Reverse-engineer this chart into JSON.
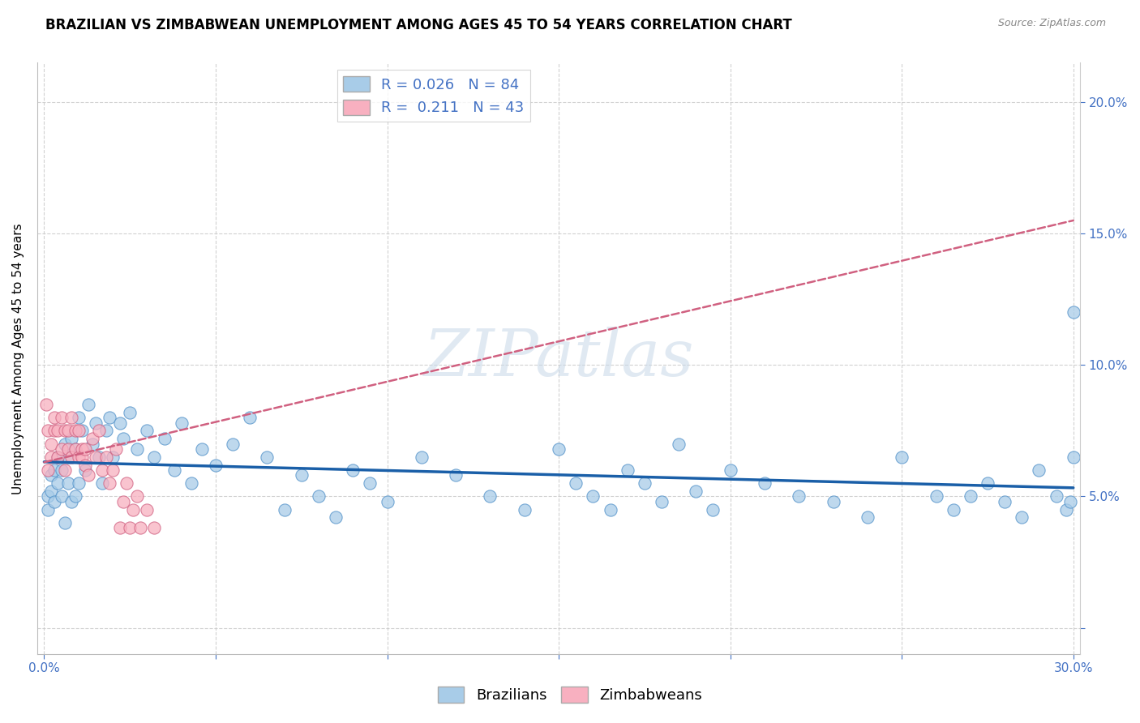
{
  "title": "BRAZILIAN VS ZIMBABWEAN UNEMPLOYMENT AMONG AGES 45 TO 54 YEARS CORRELATION CHART",
  "source": "Source: ZipAtlas.com",
  "ylabel": "Unemployment Among Ages 45 to 54 years",
  "xlim": [
    -0.002,
    0.302
  ],
  "ylim": [
    -0.01,
    0.215
  ],
  "yticks": [
    0.0,
    0.05,
    0.1,
    0.15,
    0.2
  ],
  "xticks": [
    0.0,
    0.05,
    0.1,
    0.15,
    0.2,
    0.25,
    0.3
  ],
  "brazil_color": "#a8cce8",
  "brazil_edge_color": "#5090c8",
  "brazil_line_color": "#1a5fa8",
  "zimb_color": "#f8b0c0",
  "zimb_edge_color": "#d06080",
  "zimb_line_color": "#d06080",
  "brazil_R": 0.026,
  "brazil_N": 84,
  "zimb_R": 0.211,
  "zimb_N": 43,
  "watermark": "ZIPatlas",
  "watermark_color": "#c8d8e8",
  "title_fontsize": 12,
  "axis_label_fontsize": 11,
  "tick_fontsize": 11,
  "legend_fontsize": 13,
  "tick_color": "#4472c4",
  "brazil_x": [
    0.001,
    0.001,
    0.002,
    0.002,
    0.003,
    0.003,
    0.004,
    0.004,
    0.005,
    0.005,
    0.006,
    0.006,
    0.007,
    0.007,
    0.008,
    0.008,
    0.009,
    0.009,
    0.01,
    0.01,
    0.011,
    0.012,
    0.013,
    0.014,
    0.015,
    0.016,
    0.017,
    0.018,
    0.019,
    0.02,
    0.022,
    0.023,
    0.025,
    0.027,
    0.03,
    0.032,
    0.035,
    0.038,
    0.04,
    0.043,
    0.046,
    0.05,
    0.055,
    0.06,
    0.065,
    0.07,
    0.075,
    0.08,
    0.085,
    0.09,
    0.095,
    0.1,
    0.11,
    0.12,
    0.13,
    0.14,
    0.15,
    0.155,
    0.16,
    0.165,
    0.17,
    0.175,
    0.18,
    0.185,
    0.19,
    0.195,
    0.2,
    0.21,
    0.22,
    0.23,
    0.24,
    0.25,
    0.26,
    0.265,
    0.27,
    0.275,
    0.28,
    0.285,
    0.29,
    0.295,
    0.298,
    0.299,
    0.3,
    0.3
  ],
  "brazil_y": [
    0.05,
    0.045,
    0.058,
    0.052,
    0.06,
    0.048,
    0.055,
    0.065,
    0.05,
    0.06,
    0.04,
    0.07,
    0.055,
    0.065,
    0.048,
    0.072,
    0.05,
    0.068,
    0.08,
    0.055,
    0.075,
    0.06,
    0.085,
    0.07,
    0.078,
    0.065,
    0.055,
    0.075,
    0.08,
    0.065,
    0.078,
    0.072,
    0.082,
    0.068,
    0.075,
    0.065,
    0.072,
    0.06,
    0.078,
    0.055,
    0.068,
    0.062,
    0.07,
    0.08,
    0.065,
    0.045,
    0.058,
    0.05,
    0.042,
    0.06,
    0.055,
    0.048,
    0.065,
    0.058,
    0.05,
    0.045,
    0.068,
    0.055,
    0.05,
    0.045,
    0.06,
    0.055,
    0.048,
    0.07,
    0.052,
    0.045,
    0.06,
    0.055,
    0.05,
    0.048,
    0.042,
    0.065,
    0.05,
    0.045,
    0.05,
    0.055,
    0.048,
    0.042,
    0.06,
    0.05,
    0.045,
    0.048,
    0.12,
    0.065
  ],
  "zimb_x": [
    0.0005,
    0.001,
    0.001,
    0.002,
    0.002,
    0.003,
    0.003,
    0.004,
    0.004,
    0.005,
    0.005,
    0.006,
    0.006,
    0.007,
    0.007,
    0.008,
    0.008,
    0.009,
    0.009,
    0.01,
    0.01,
    0.011,
    0.011,
    0.012,
    0.012,
    0.013,
    0.014,
    0.015,
    0.016,
    0.017,
    0.018,
    0.019,
    0.02,
    0.021,
    0.022,
    0.023,
    0.024,
    0.025,
    0.026,
    0.027,
    0.028,
    0.03,
    0.032
  ],
  "zimb_y": [
    0.085,
    0.06,
    0.075,
    0.065,
    0.07,
    0.075,
    0.08,
    0.065,
    0.075,
    0.068,
    0.08,
    0.06,
    0.075,
    0.068,
    0.075,
    0.065,
    0.08,
    0.068,
    0.075,
    0.065,
    0.075,
    0.068,
    0.065,
    0.062,
    0.068,
    0.058,
    0.072,
    0.065,
    0.075,
    0.06,
    0.065,
    0.055,
    0.06,
    0.068,
    0.038,
    0.048,
    0.055,
    0.038,
    0.045,
    0.05,
    0.038,
    0.045,
    0.038
  ]
}
